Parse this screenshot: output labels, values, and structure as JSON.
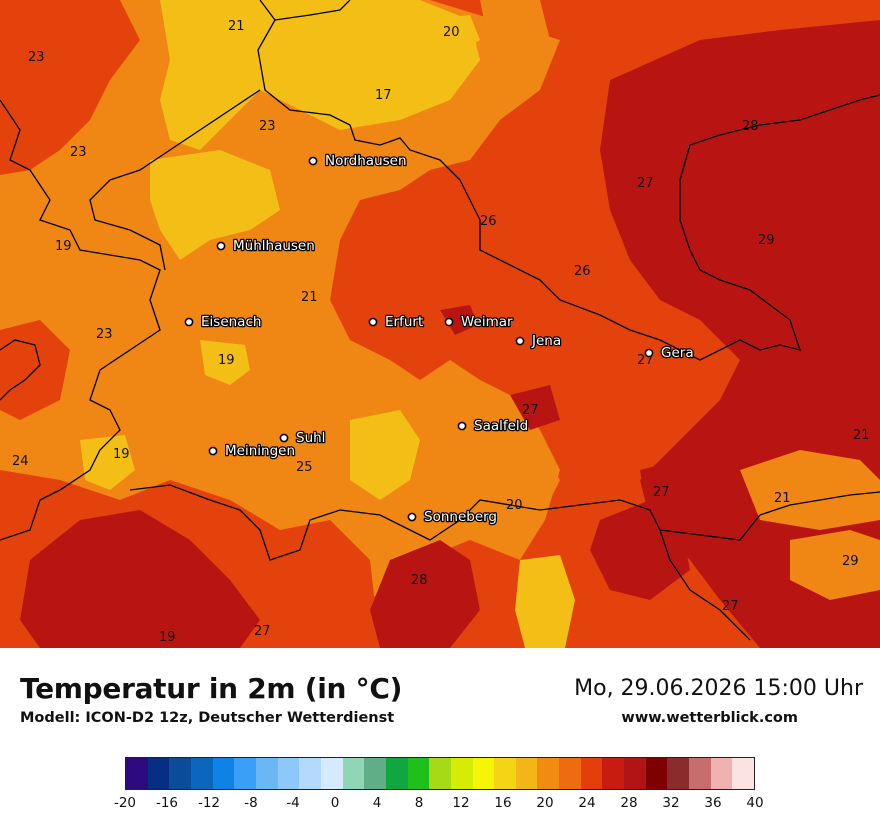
{
  "title": "Temperatur in 2m (in °C)",
  "subtitle": "Modell: ICON-D2 12z, Deutscher Wetterdienst",
  "datetime": "Mo, 29.06.2026 15:00 Uhr",
  "website": "www.wetterblick.com",
  "cities": [
    "Nordhausen",
    "Mühlhausen",
    "Eisenach",
    "Erfurt",
    "Weimar",
    "Jena",
    "Gera",
    "Suhl",
    "Meiningen",
    "Saalfeld",
    "Sonneberg"
  ],
  "temperature_labels": [
    "21",
    "20",
    "23",
    "17",
    "23",
    "23",
    "28",
    "27",
    "26",
    "19",
    "29",
    "26",
    "21",
    "23",
    "19",
    "27",
    "27",
    "24",
    "19",
    "25",
    "21",
    "21",
    "27",
    "20",
    "29",
    "28",
    "27",
    "19",
    "27"
  ],
  "legend": {
    "ticks": [
      "-20",
      "-16",
      "-12",
      "-8",
      "-4",
      "0",
      "4",
      "8",
      "12",
      "16",
      "20",
      "24",
      "28",
      "32",
      "36",
      "40"
    ],
    "colors": [
      "#2d0a7e",
      "#062f83",
      "#0a4c98",
      "#0b66bd",
      "#0f82e6",
      "#3aa0f7",
      "#6bb7f6",
      "#8ec8fb",
      "#b3dafc",
      "#d6eafd",
      "#8fd6b7",
      "#5fae88",
      "#10a640",
      "#1fbf1c",
      "#a6d916",
      "#d7ec04",
      "#f7f506",
      "#f4d414",
      "#f3b518",
      "#f18b11",
      "#ef6b12",
      "#e33e0c",
      "#c71c0f",
      "#b01414",
      "#7e0000",
      "#8b2b2b",
      "#c86d6d",
      "#f2b1b1",
      "#fde2e2"
    ]
  },
  "colors": {
    "yellow": "#f3bf17",
    "orange": "#f08613",
    "red_orange": "#e4420c",
    "dark_red": "#b81512"
  }
}
